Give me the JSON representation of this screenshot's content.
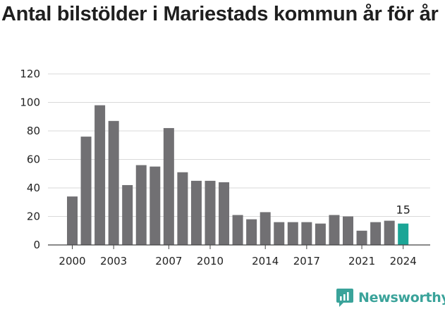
{
  "title": "Antal bilstölder i Mariestads kommun år för år",
  "brand": {
    "name": "Newsworthy",
    "color": "#3aa39a"
  },
  "colors": {
    "bar": "#717073",
    "highlight": "#1ba596",
    "grid": "#d9d9d9",
    "axis": "#444444"
  },
  "chart_data": {
    "type": "bar",
    "title": "Antal bilstölder i Mariestads kommun år för år",
    "xlabel": "",
    "ylabel": "",
    "x": [
      2000,
      2001,
      2002,
      2003,
      2004,
      2005,
      2006,
      2007,
      2008,
      2009,
      2010,
      2011,
      2012,
      2013,
      2014,
      2015,
      2016,
      2017,
      2018,
      2019,
      2020,
      2021,
      2022,
      2023,
      2024
    ],
    "values": [
      34,
      76,
      98,
      87,
      42,
      56,
      55,
      82,
      51,
      45,
      45,
      44,
      21,
      18,
      23,
      16,
      16,
      16,
      15,
      21,
      20,
      10,
      16,
      17,
      15
    ],
    "ylim": [
      0,
      120
    ],
    "yticks": [
      0,
      20,
      40,
      60,
      80,
      100,
      120
    ],
    "xticks": [
      2000,
      2003,
      2007,
      2010,
      2014,
      2017,
      2021,
      2024
    ],
    "grid": true,
    "highlight": {
      "x": 2024,
      "label": "15"
    }
  }
}
